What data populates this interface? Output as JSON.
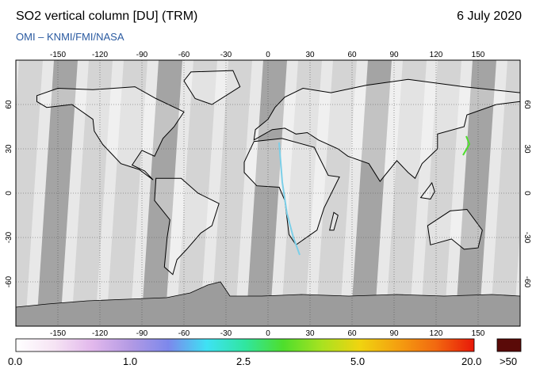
{
  "title": "SO2 vertical column [DU] (TRM)",
  "date": "6 July 2020",
  "subtitle": "OMI  –  KNMI/FMI/NASA",
  "map": {
    "lon_ticks": [
      "-150",
      "-120",
      "-90",
      "-60",
      "-30",
      "0",
      "30",
      "60",
      "90",
      "120",
      "150"
    ],
    "lat_ticks_left": [
      "60",
      "30",
      "0",
      "-30",
      "-60"
    ],
    "lat_ticks_right": [
      "60",
      "30",
      "0",
      "-30",
      "-60"
    ],
    "land_color": "#ffffff",
    "swath_color": "#d4d4d4",
    "swath_dark_color": "#a4a4a4",
    "antarctica_color": "#9c9c9c"
  },
  "colorbar": {
    "labels": [
      "0.0",
      "1.0",
      "2.5",
      "5.0",
      "20.0",
      ">50"
    ],
    "colors": [
      "#ffffff",
      "#f6e4f4",
      "#e2b8ec",
      "#b39ae4",
      "#7c88ec",
      "#3ee2f4",
      "#30e6a0",
      "#4ede2c",
      "#a8e220",
      "#f0d410",
      "#f4a010",
      "#f26810",
      "#e81808"
    ],
    "overflow_color": "#5a0a08"
  }
}
